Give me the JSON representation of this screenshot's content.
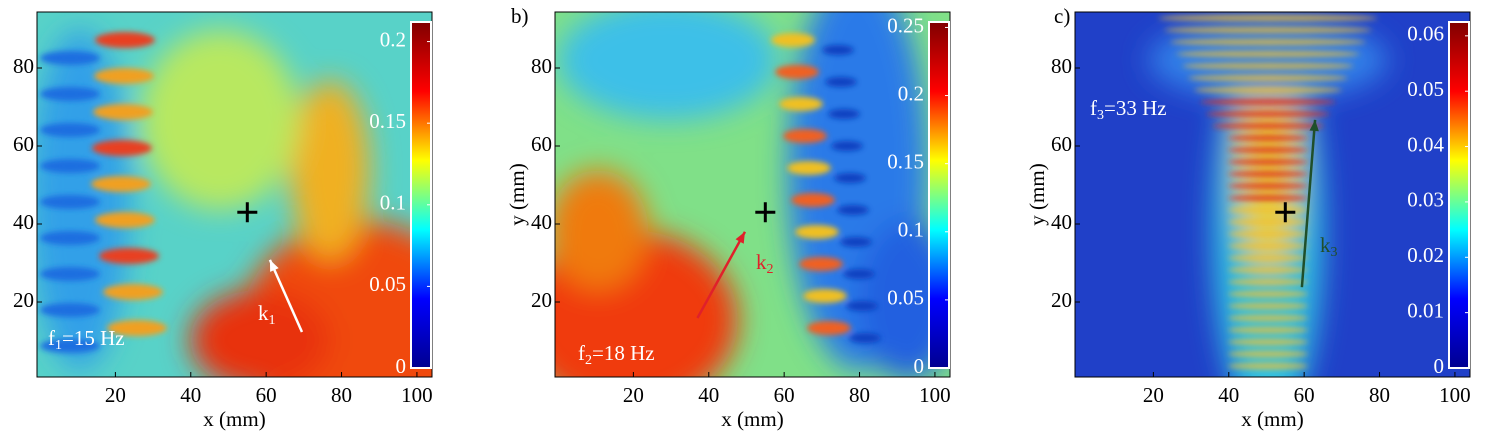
{
  "chart_data": [
    {
      "type": "heatmap",
      "xlabel": "x (mm)",
      "xlim": [
        0,
        104
      ],
      "xticks": [
        20,
        40,
        60,
        80,
        100
      ],
      "ylim": [
        0,
        94
      ],
      "yticks": [
        20,
        40,
        60,
        80
      ],
      "colormap": "jet",
      "clim": [
        0,
        0.212
      ],
      "cticks": [
        0,
        0.05,
        0.1,
        0.15,
        0.2
      ],
      "marker": {
        "x": 55,
        "y": 43,
        "color": "#000000"
      },
      "arrow": {
        "x": [
          69.5,
          61
        ],
        "y": [
          12.3,
          30.8
        ],
        "color": "#ffffff",
        "label": [
          "k",
          "1"
        ]
      },
      "freq_label": [
        "f",
        "1",
        "=15 Hz"
      ]
    },
    {
      "type": "heatmap",
      "panel_label": "b)",
      "xlabel": "x (mm)",
      "ylabel": "y (mm)",
      "xlim": [
        0,
        104
      ],
      "xticks": [
        20,
        40,
        60,
        80,
        100
      ],
      "ylim": [
        0,
        94
      ],
      "yticks": [
        20,
        40,
        60,
        80
      ],
      "colormap": "jet",
      "clim": [
        0,
        0.254
      ],
      "cticks": [
        0,
        0.05,
        0.1,
        0.15,
        0.2,
        0.25
      ],
      "marker": {
        "x": 55,
        "y": 43,
        "color": "#000000"
      },
      "arrow": {
        "x": [
          37,
          49.6
        ],
        "y": [
          15.9,
          38
        ],
        "color": "#e0202a",
        "label": [
          "k",
          "2"
        ]
      },
      "freq_label": [
        "f",
        "2",
        "=18 Hz"
      ]
    },
    {
      "type": "heatmap",
      "panel_label": "c)",
      "xlabel": "x (mm)",
      "ylabel": "y (mm)",
      "xlim": [
        0,
        104
      ],
      "xticks": [
        20,
        40,
        60,
        80,
        100
      ],
      "ylim": [
        0,
        94
      ],
      "yticks": [
        20,
        40,
        60,
        80
      ],
      "colormap": "jet",
      "clim": [
        0,
        0.0625
      ],
      "cticks": [
        0,
        0.01,
        0.02,
        0.03,
        0.04,
        0.05,
        0.06
      ],
      "marker": {
        "x": 55,
        "y": 43,
        "color": "#000000"
      },
      "arrow": {
        "x": [
          59.4,
          62.9
        ],
        "y": [
          23.8,
          66.7
        ],
        "color": "#1f4f2a",
        "label": [
          "k",
          "3"
        ]
      },
      "freq_label": [
        "f",
        "3",
        "=33 Hz"
      ]
    }
  ]
}
